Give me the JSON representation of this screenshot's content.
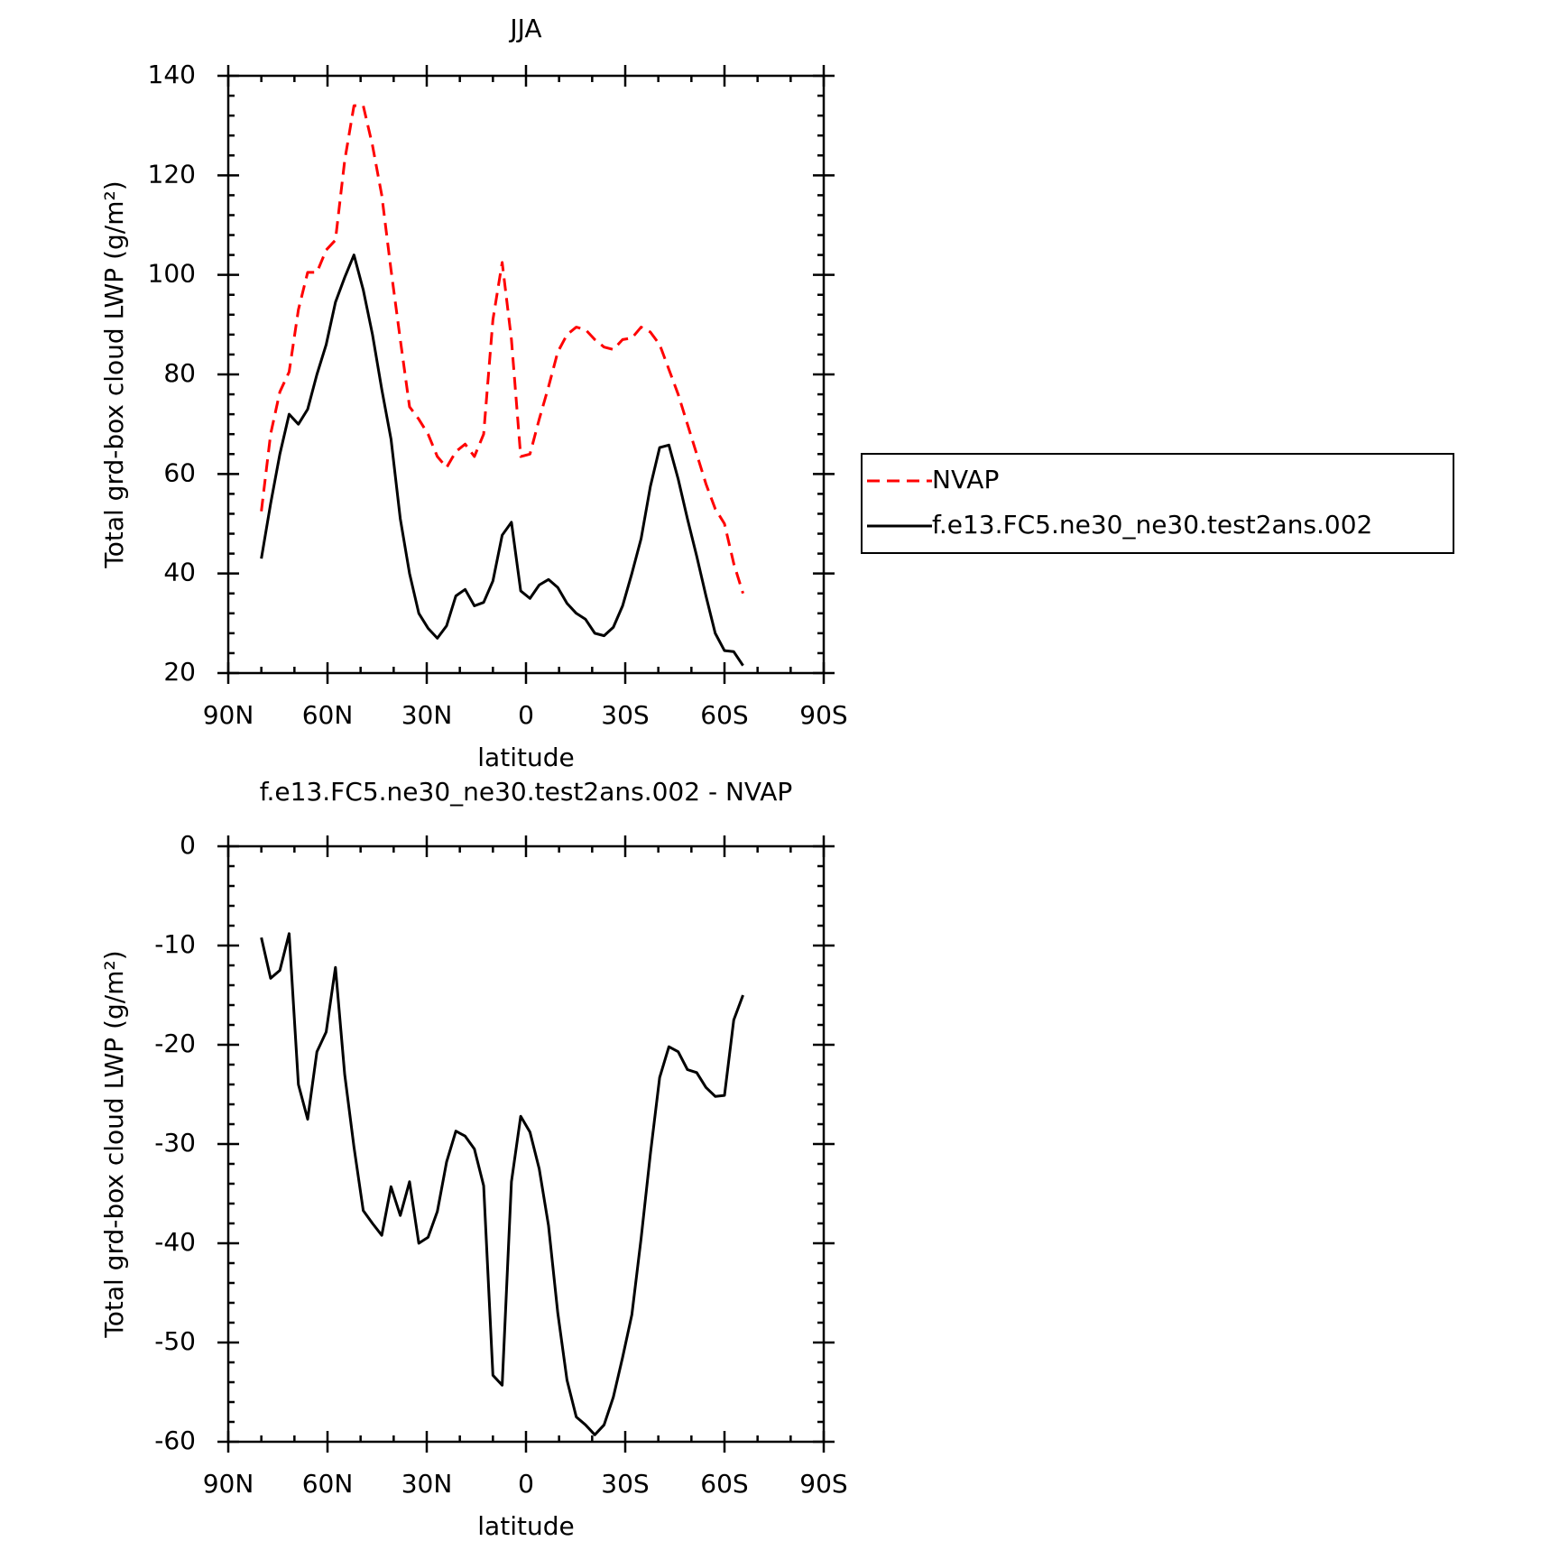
{
  "chart_data": [
    {
      "type": "line",
      "title": "JJA",
      "xlabel": "latitude",
      "ylabel": "Total grd-box cloud LWP (g/m²)",
      "x": [
        80,
        77.2,
        74.4,
        71.6,
        68.8,
        66,
        63.2,
        60.4,
        57.6,
        54.8,
        52,
        49.2,
        46.4,
        43.6,
        40.8,
        38,
        35.2,
        32.4,
        29.6,
        26.8,
        24,
        21.2,
        18.4,
        15.6,
        12.8,
        10,
        7.2,
        4.4,
        1.6,
        -1.2,
        -4,
        -6.8,
        -9.6,
        -12.4,
        -15.2,
        -18,
        -20.8,
        -23.6,
        -26.4,
        -29.2,
        -32,
        -34.8,
        -37.6,
        -40.4,
        -43.2,
        -46,
        -48.8,
        -51.6,
        -54.4,
        -57.2,
        -60,
        -62.8,
        -65.6
      ],
      "xlim": [
        90,
        -90
      ],
      "xticks": [
        {
          "value": 90,
          "label": "90N"
        },
        {
          "value": 60,
          "label": "60N"
        },
        {
          "value": 30,
          "label": "30N"
        },
        0,
        {
          "value": -30,
          "label": "30S"
        },
        {
          "value": -60,
          "label": "60S"
        },
        {
          "value": -90,
          "label": "90S"
        }
      ],
      "ylim": [
        20,
        140
      ],
      "yticks": [
        20,
        40,
        60,
        80,
        100,
        120,
        140
      ],
      "legend": "right",
      "series": [
        {
          "name": "NVAP",
          "color": "#ff0000",
          "dashed": true,
          "values": [
            52.5,
            68,
            76.5,
            80.5,
            93,
            100.5,
            100.5,
            105,
            107,
            123,
            134,
            134,
            126,
            116,
            101,
            87,
            73.5,
            71,
            68,
            63.5,
            61.3,
            64.5,
            66,
            63.5,
            68,
            91,
            102.5,
            87,
            63.5,
            64,
            71,
            77.5,
            84.5,
            88,
            89.5,
            89,
            87,
            85.5,
            85,
            87,
            87.3,
            89.5,
            88.5,
            86,
            81,
            76,
            70,
            64,
            58,
            53,
            50,
            42,
            36
          ]
        },
        {
          "name": "f.e13.FC5.ne30_ne30.test2ans.002",
          "color": "#000000",
          "dashed": false,
          "values": [
            43,
            54,
            64,
            72,
            70,
            73,
            80,
            86,
            94.5,
            99.5,
            104,
            97,
            88,
            77,
            67,
            51,
            40,
            32,
            29,
            27,
            29.5,
            35.5,
            36.8,
            33.5,
            34.2,
            38.5,
            47.7,
            50.3,
            36.5,
            35,
            37.7,
            38.8,
            37.2,
            34,
            32,
            30.8,
            28,
            27.5,
            29.2,
            33.5,
            40,
            47,
            57.5,
            65.3,
            65.8,
            59,
            51,
            43.5,
            35.5,
            28,
            24.5,
            24.3,
            21.5
          ]
        }
      ]
    },
    {
      "type": "line",
      "title": "f.e13.FC5.ne30_ne30.test2ans.002 - NVAP",
      "xlabel": "latitude",
      "ylabel": "Total grd-box cloud LWP (g/m²)",
      "x": [
        80,
        77.2,
        74.4,
        71.6,
        68.8,
        66,
        63.2,
        60.4,
        57.6,
        54.8,
        52,
        49.2,
        46.4,
        43.6,
        40.8,
        38,
        35.2,
        32.4,
        29.6,
        26.8,
        24,
        21.2,
        18.4,
        15.6,
        12.8,
        10,
        7.2,
        4.4,
        1.6,
        -1.2,
        -4,
        -6.8,
        -9.6,
        -12.4,
        -15.2,
        -18,
        -20.8,
        -23.6,
        -26.4,
        -29.2,
        -32,
        -34.8,
        -37.6,
        -40.4,
        -43.2,
        -46,
        -48.8,
        -51.6,
        -54.4,
        -57.2,
        -60,
        -62.8,
        -65.6
      ],
      "xlim": [
        90,
        -90
      ],
      "xticks": [
        {
          "value": 90,
          "label": "90N"
        },
        {
          "value": 60,
          "label": "60N"
        },
        {
          "value": 30,
          "label": "30N"
        },
        0,
        {
          "value": -30,
          "label": "30S"
        },
        {
          "value": -60,
          "label": "60S"
        },
        {
          "value": -90,
          "label": "90S"
        }
      ],
      "ylim": [
        -60,
        0
      ],
      "yticks": [
        -60,
        -50,
        -40,
        -30,
        -20,
        -10,
        0
      ],
      "series": [
        {
          "color": "#000000",
          "dashed": false,
          "values": [
            -9.2,
            -13.3,
            -12.5,
            -8.8,
            -24,
            -27.5,
            -20.7,
            -18.7,
            -12.2,
            -23,
            -30.3,
            -36.7,
            -38,
            -39.2,
            -34.3,
            -37.2,
            -33.8,
            -40,
            -39.4,
            -36.8,
            -31.8,
            -28.7,
            -29.2,
            -30.5,
            -34.2,
            -53.3,
            -54.3,
            -33.8,
            -27.2,
            -28.8,
            -32.5,
            -38.2,
            -47,
            -53.8,
            -57.5,
            -58.3,
            -59.3,
            -58.3,
            -55.5,
            -51.5,
            -47.2,
            -39.5,
            -31,
            -23.3,
            -20.2,
            -20.7,
            -22.5,
            -22.8,
            -24.3,
            -25.2,
            -25.1,
            -17.5,
            -15
          ]
        }
      ]
    }
  ]
}
